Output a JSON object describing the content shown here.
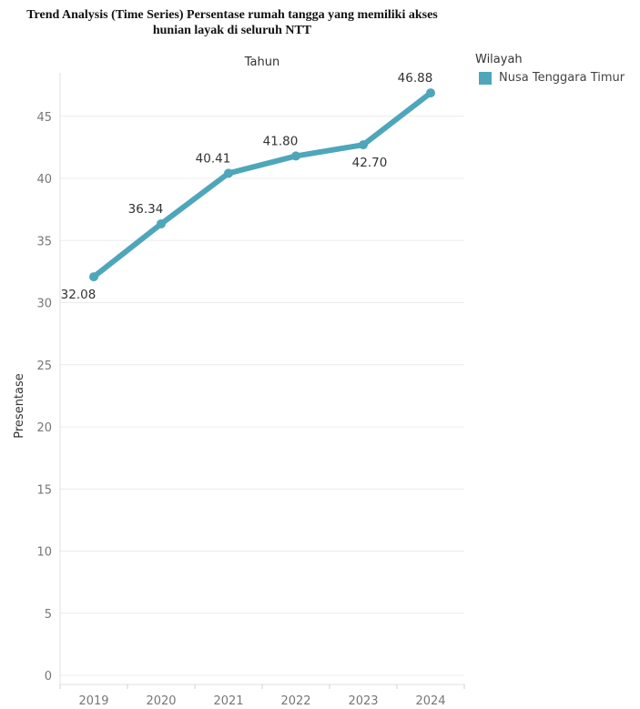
{
  "chart_data": {
    "type": "line",
    "title_lines": [
      "Trend Analysis (Time Series) Persentase rumah tangga yang memiliki akses",
      "hunian layak di seluruh NTT"
    ],
    "column_header": "Tahun",
    "ylabel": "Presentase",
    "categories": [
      "2019",
      "2020",
      "2021",
      "2022",
      "2023",
      "2024"
    ],
    "ylim": [
      0,
      48
    ],
    "yticks": [
      0,
      5,
      10,
      15,
      20,
      25,
      30,
      35,
      40,
      45
    ],
    "grid": true,
    "legend": {
      "title": "Wilayah",
      "position": "right"
    },
    "series": [
      {
        "name": "Nusa Tenggara Timur",
        "color": "#4ea6bb",
        "values": [
          32.08,
          36.34,
          40.41,
          41.8,
          42.7,
          46.88
        ],
        "labels": [
          "32.08",
          "36.34",
          "40.41",
          "41.80",
          "42.70",
          "46.88"
        ]
      }
    ]
  }
}
